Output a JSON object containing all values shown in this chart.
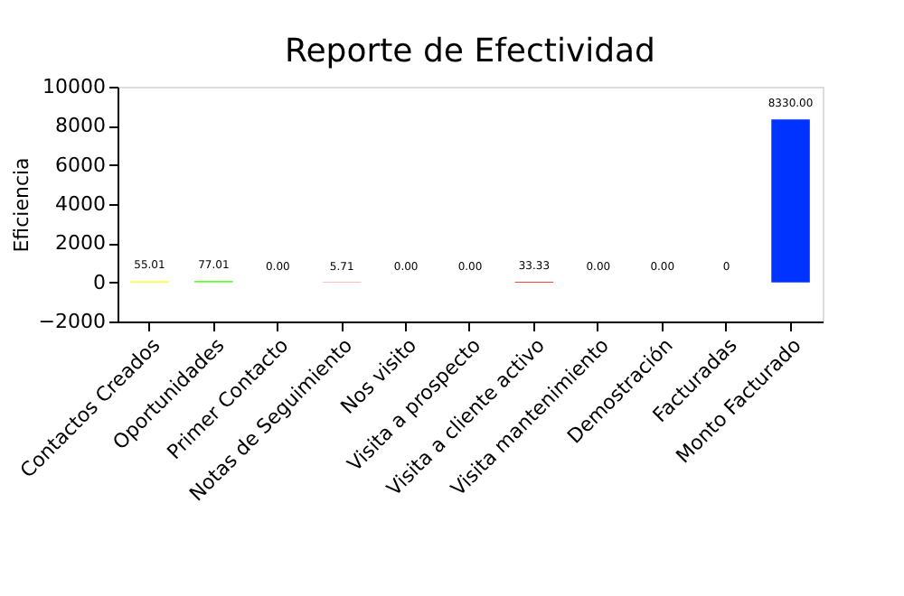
{
  "chart_data": {
    "type": "bar",
    "title": "Reporte de Efectividad",
    "ylabel": "Eficiencia",
    "categories": [
      "Contactos Creados",
      "Oportunidades",
      "Primer Contacto",
      "Notas de Seguimiento",
      "Nos visito",
      "Visita a prospecto",
      "Visita a cliente activo",
      "Visita mantenimiento",
      "Demostración",
      "Facturadas",
      "Monto Facturado"
    ],
    "values": [
      55.01,
      77.01,
      0,
      5.71,
      0,
      0,
      33.33,
      0,
      0,
      0,
      8330
    ],
    "value_labels": [
      "55.01",
      "77.01",
      "0.00",
      "5.71",
      "0.00",
      "0.00",
      "33.33",
      "0.00",
      "0.00",
      "0",
      "8330.00"
    ],
    "colors": [
      "#ffff00",
      "#66ff33",
      "#ff7777",
      "#ff0000",
      "#ff7777",
      "#ff7777",
      "#ff0000",
      "#ff7777",
      "#ff7777",
      "#ff7777",
      "#0033ff"
    ],
    "ylim": [
      -2000,
      10000
    ],
    "yticks": [
      -2000,
      0,
      2000,
      4000,
      6000,
      8000,
      10000
    ],
    "grid": false
  }
}
